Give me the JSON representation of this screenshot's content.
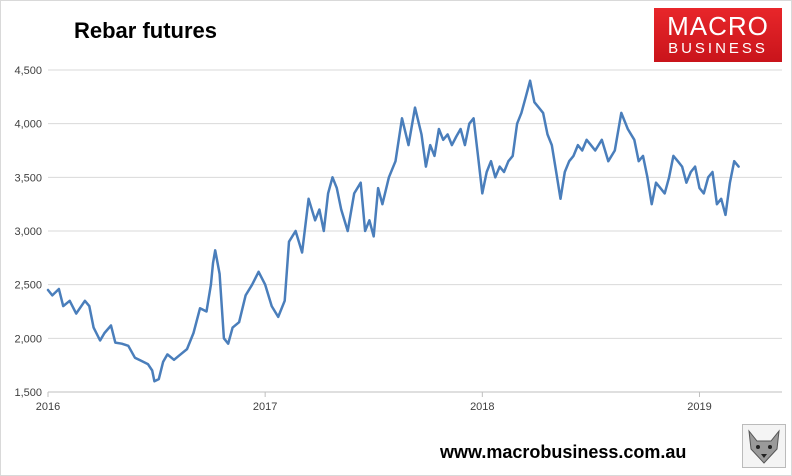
{
  "title": "Rebar futures",
  "logo": {
    "line1": "MACRO",
    "line2": "BUSINESS",
    "color": "#e31e24"
  },
  "website": "www.macrobusiness.com.au",
  "wolf_icon": "wolf-head-icon",
  "chart_data": {
    "type": "line",
    "title": "Rebar futures",
    "xlabel": "",
    "ylabel": "",
    "ylim": [
      1500,
      4500
    ],
    "yticks": [
      1500,
      2000,
      2500,
      3000,
      3500,
      4000,
      4500
    ],
    "ytick_labels": [
      "1,500",
      "2,000",
      "2,500",
      "3,000",
      "3,500",
      "4,000",
      "4,500"
    ],
    "xlim": [
      2016.0,
      2019.38
    ],
    "xticks": [
      2016,
      2017,
      2018,
      2019
    ],
    "xtick_labels": [
      "2016",
      "2017",
      "2018",
      "2019"
    ],
    "grid": true,
    "line_color": "#4a7ebb",
    "series": [
      {
        "x": [
          2016.0,
          2016.02,
          2016.05,
          2016.07,
          2016.1,
          2016.13,
          2016.17,
          2016.19,
          2016.21,
          2016.24,
          2016.26,
          2016.29,
          2016.31,
          2016.34,
          2016.37,
          2016.4,
          2016.43,
          2016.46,
          2016.48,
          2016.49,
          2016.51,
          2016.53,
          2016.55,
          2016.58,
          2016.61,
          2016.64,
          2016.67,
          2016.7,
          2016.73,
          2016.75,
          2016.76,
          2016.77,
          2016.79,
          2016.81,
          2016.83,
          2016.85,
          2016.88,
          2016.91,
          2016.94,
          2016.97,
          2017.0,
          2017.03,
          2017.06,
          2017.09,
          2017.11,
          2017.14,
          2017.17,
          2017.2,
          2017.23,
          2017.25,
          2017.27,
          2017.29,
          2017.31,
          2017.33,
          2017.35,
          2017.38,
          2017.41,
          2017.44,
          2017.46,
          2017.48,
          2017.5,
          2017.52,
          2017.54,
          2017.57,
          2017.6,
          2017.63,
          2017.66,
          2017.69,
          2017.72,
          2017.74,
          2017.76,
          2017.78,
          2017.8,
          2017.82,
          2017.84,
          2017.86,
          2017.88,
          2017.9,
          2017.92,
          2017.94,
          2017.96,
          2017.98,
          2018.0,
          2018.02,
          2018.04,
          2018.06,
          2018.08,
          2018.1,
          2018.12,
          2018.14,
          2018.16,
          2018.18,
          2018.2,
          2018.22,
          2018.24,
          2018.26,
          2018.28,
          2018.3,
          2018.32,
          2018.34,
          2018.36,
          2018.38,
          2018.4,
          2018.42,
          2018.44,
          2018.46,
          2018.48,
          2018.5,
          2018.52,
          2018.55,
          2018.58,
          2018.61,
          2018.64,
          2018.67,
          2018.7,
          2018.72,
          2018.74,
          2018.76,
          2018.78,
          2018.8,
          2018.82,
          2018.84,
          2018.86,
          2018.88,
          2018.9,
          2018.92,
          2018.94,
          2018.96,
          2018.98,
          2019.0,
          2019.02,
          2019.04,
          2019.06,
          2019.08,
          2019.1,
          2019.12,
          2019.14,
          2019.16,
          2019.18
        ],
        "values": [
          2450,
          2400,
          2460,
          2300,
          2350,
          2230,
          2350,
          2300,
          2100,
          1980,
          2050,
          2120,
          1960,
          1950,
          1930,
          1820,
          1790,
          1760,
          1700,
          1600,
          1620,
          1780,
          1850,
          1800,
          1850,
          1900,
          2050,
          2280,
          2250,
          2500,
          2700,
          2820,
          2600,
          2000,
          1950,
          2100,
          2150,
          2400,
          2500,
          2620,
          2500,
          2300,
          2200,
          2350,
          2900,
          3000,
          2800,
          3300,
          3100,
          3200,
          3000,
          3350,
          3500,
          3400,
          3200,
          3000,
          3350,
          3450,
          3000,
          3100,
          2950,
          3400,
          3250,
          3500,
          3650,
          4050,
          3800,
          4150,
          3900,
          3600,
          3800,
          3700,
          3950,
          3850,
          3900,
          3800,
          3880,
          3950,
          3800,
          4000,
          4050,
          3700,
          3350,
          3550,
          3650,
          3500,
          3600,
          3550,
          3650,
          3700,
          4000,
          4100,
          4250,
          4400,
          4200,
          4150,
          4100,
          3900,
          3800,
          3550,
          3300,
          3550,
          3650,
          3700,
          3800,
          3750,
          3850,
          3800,
          3750,
          3850,
          3650,
          3750,
          4100,
          3950,
          3850,
          3650,
          3700,
          3500,
          3250,
          3450,
          3400,
          3350,
          3500,
          3700,
          3650,
          3600,
          3450,
          3550,
          3600,
          3400,
          3350,
          3500,
          3550,
          3250,
          3300,
          3150,
          3450,
          3650,
          3600
        ]
      }
    ]
  }
}
